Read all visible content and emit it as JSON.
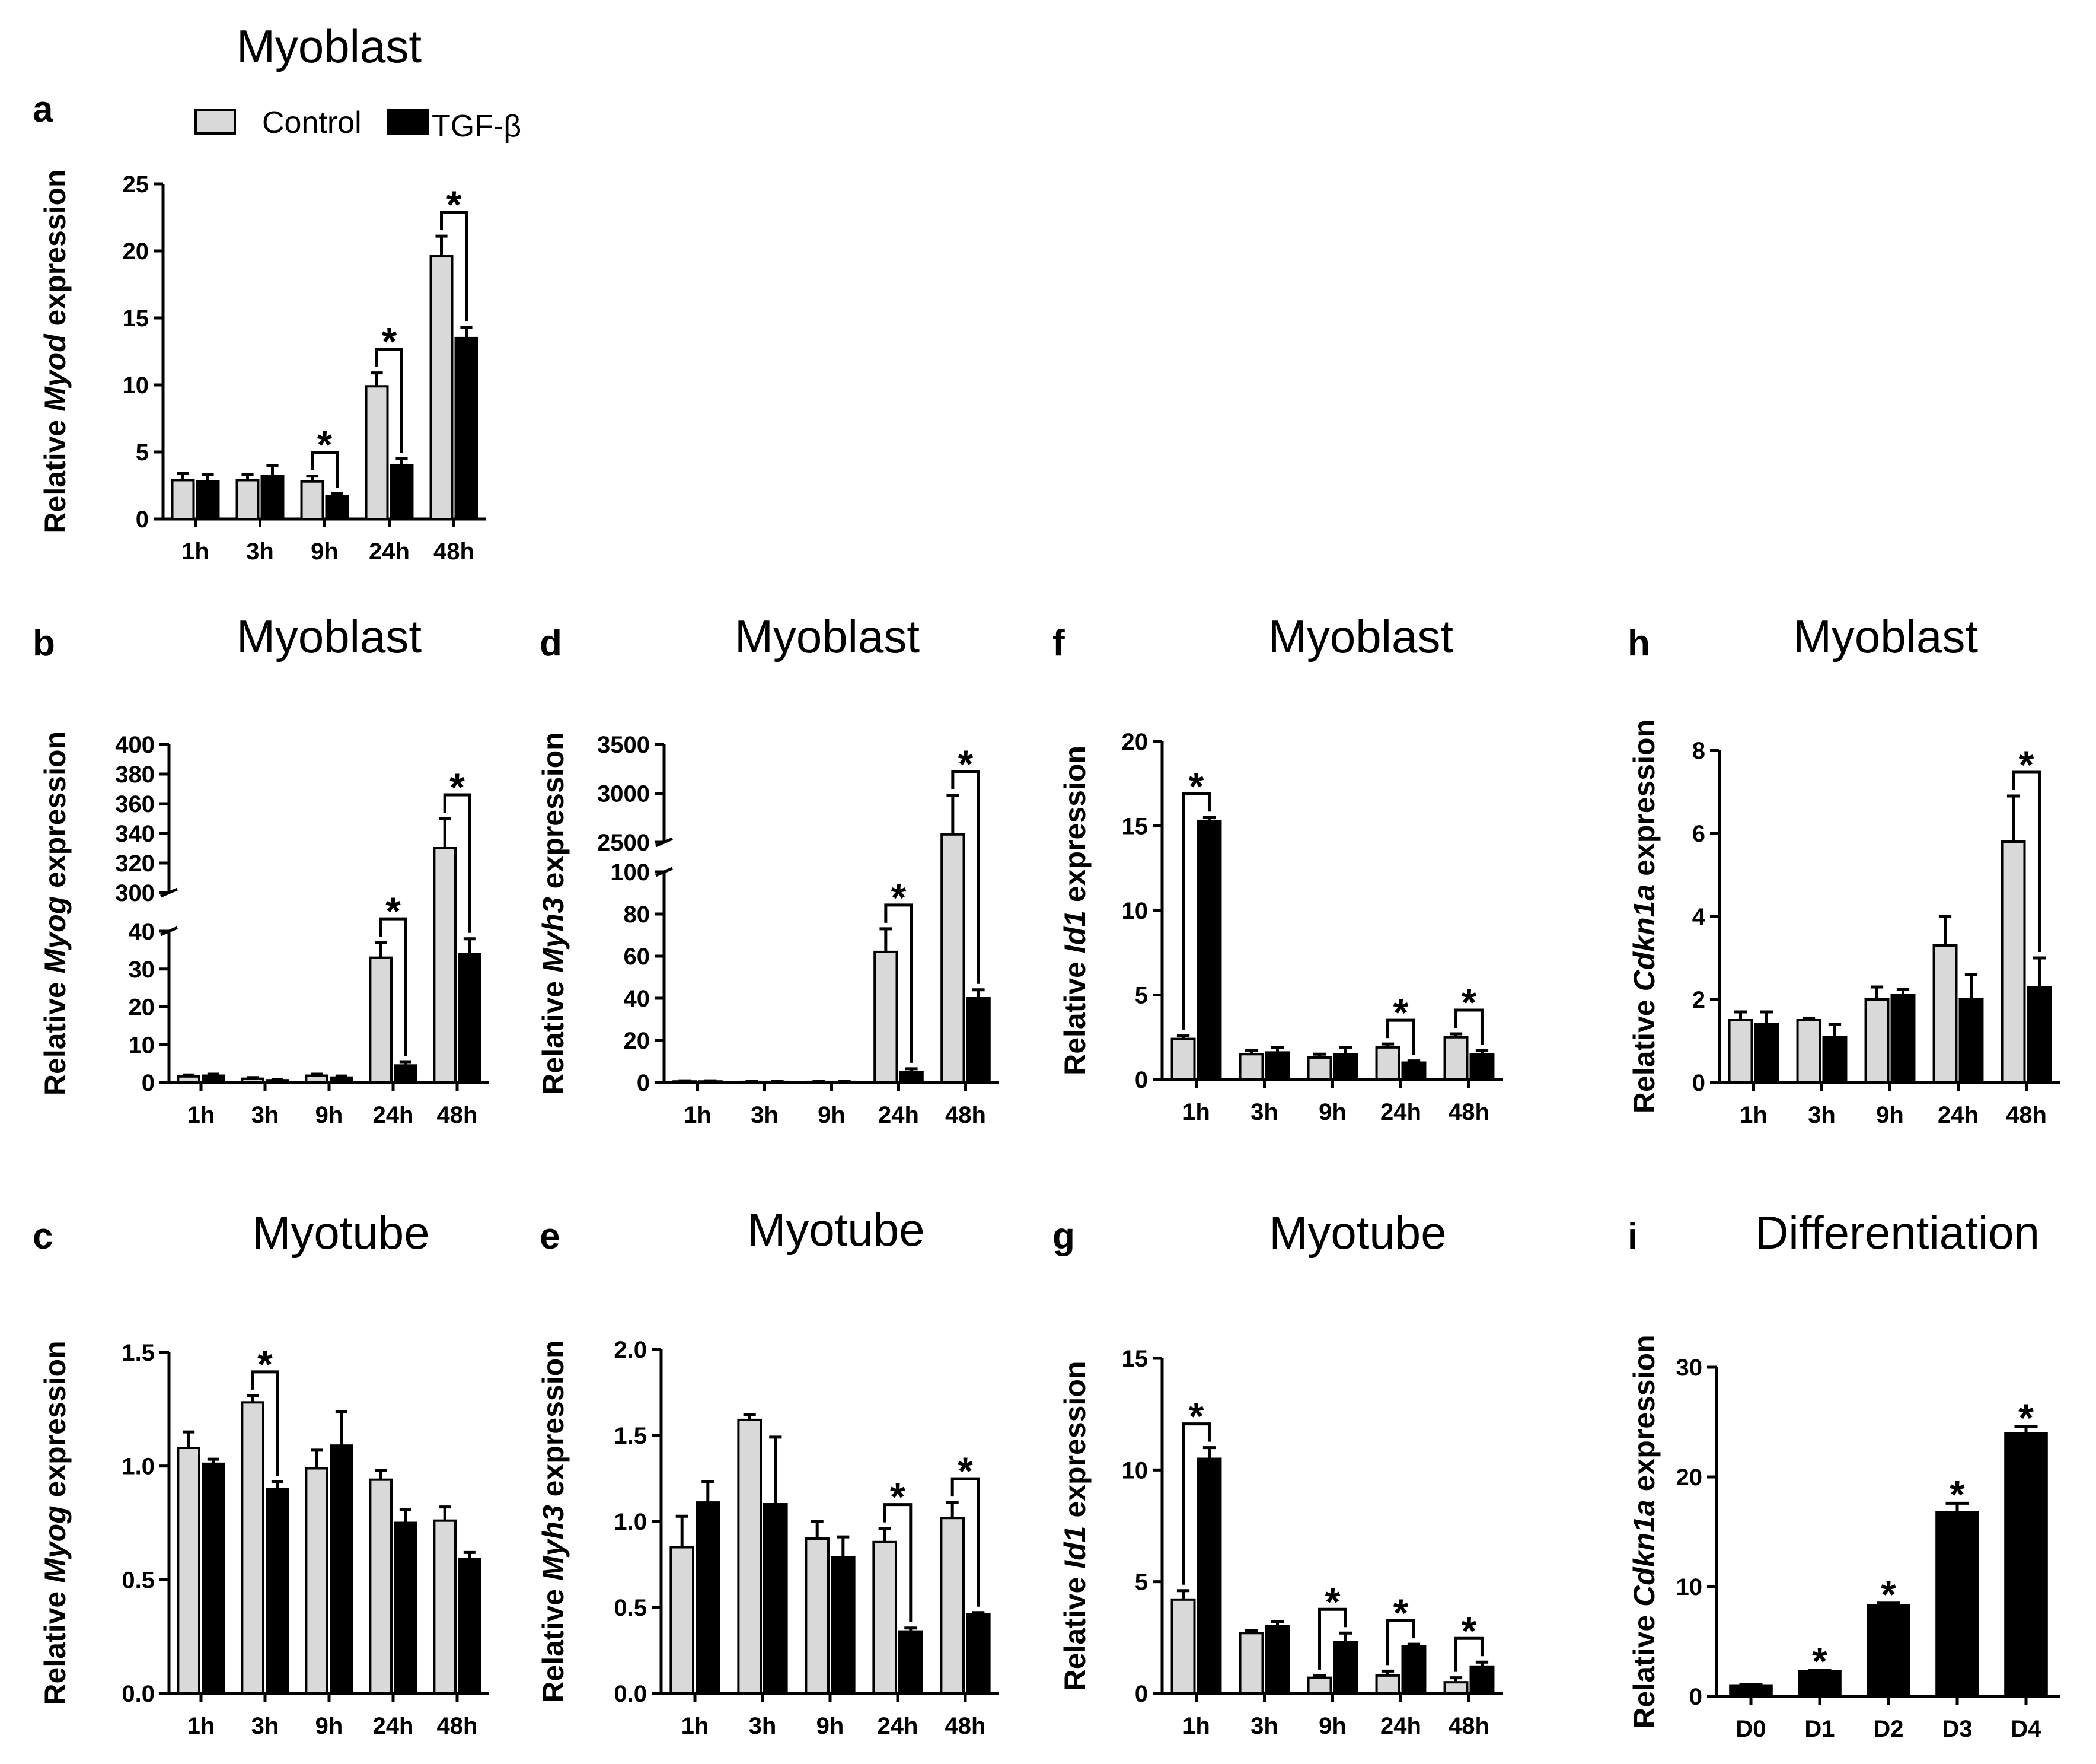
{
  "legend": {
    "items": [
      {
        "label": "Control",
        "color": "#d9d9d9"
      },
      {
        "label": "TGF-β",
        "color": "#000000"
      }
    ]
  },
  "chart_data": [
    {
      "id": "a",
      "letter": "a",
      "type": "bar",
      "title": "Myoblast",
      "ylabel_pre": "Relative ",
      "ylabel_gene": "Myod",
      "ylabel_post": " expression",
      "categories": [
        "1h",
        "3h",
        "9h",
        "24h",
        "48h"
      ],
      "series": [
        {
          "name": "Control",
          "values": [
            2.9,
            2.9,
            2.8,
            9.9,
            19.6
          ],
          "errors": [
            0.5,
            0.4,
            0.4,
            1.0,
            1.5
          ]
        },
        {
          "name": "TGF-β",
          "values": [
            2.8,
            3.2,
            1.7,
            4.0,
            13.5
          ],
          "errors": [
            0.5,
            0.8,
            0.2,
            0.5,
            0.8
          ]
        }
      ],
      "ylim": [
        0,
        25
      ],
      "yticks": [
        0,
        5,
        10,
        15,
        20,
        25
      ],
      "significance": [
        2,
        3,
        4
      ]
    },
    {
      "id": "b",
      "letter": "b",
      "type": "bar",
      "title": "Myoblast",
      "ylabel_pre": "Relative ",
      "ylabel_gene": "Myog",
      "ylabel_post": " expression",
      "categories": [
        "1h",
        "3h",
        "9h",
        "24h",
        "48h"
      ],
      "series": [
        {
          "name": "Control",
          "values": [
            1.6,
            1.0,
            1.8,
            33,
            330
          ],
          "errors": [
            0.4,
            0.3,
            0.4,
            4,
            20
          ]
        },
        {
          "name": "TGF-β",
          "values": [
            1.8,
            0.6,
            1.3,
            4.5,
            34
          ],
          "errors": [
            0.4,
            0.2,
            0.4,
            1.0,
            4
          ]
        }
      ],
      "broken_axis": {
        "lower": [
          0,
          40
        ],
        "upper": [
          300,
          400
        ]
      },
      "yticks": [
        0,
        10,
        20,
        30,
        40,
        300,
        320,
        340,
        360,
        380,
        400
      ],
      "significance": [
        3,
        4
      ]
    },
    {
      "id": "c",
      "letter": "c",
      "type": "bar",
      "title": "Myotube",
      "ylabel_pre": "Relative ",
      "ylabel_gene": "Myog",
      "ylabel_post": " expression",
      "categories": [
        "1h",
        "3h",
        "9h",
        "24h",
        "48h"
      ],
      "series": [
        {
          "name": "Control",
          "values": [
            1.08,
            1.28,
            0.99,
            0.94,
            0.76
          ],
          "errors": [
            0.07,
            0.03,
            0.08,
            0.04,
            0.06
          ]
        },
        {
          "name": "TGF-β",
          "values": [
            1.01,
            0.9,
            1.09,
            0.75,
            0.59
          ],
          "errors": [
            0.02,
            0.03,
            0.15,
            0.06,
            0.03
          ]
        }
      ],
      "ylim": [
        0,
        1.5
      ],
      "yticks": [
        "0.0",
        "0.5",
        "1.0",
        "1.5"
      ],
      "significance": [
        1
      ]
    },
    {
      "id": "d",
      "letter": "d",
      "type": "bar",
      "title": "Myoblast",
      "ylabel_pre": "Relative ",
      "ylabel_gene": "Myh3",
      "ylabel_post": " expression",
      "categories": [
        "1h",
        "3h",
        "9h",
        "24h",
        "48h"
      ],
      "series": [
        {
          "name": "Control",
          "values": [
            0.5,
            0.3,
            0.3,
            62,
            2580
          ],
          "errors": [
            0.3,
            0.2,
            0.2,
            11,
            400
          ]
        },
        {
          "name": "TGF-β",
          "values": [
            0.5,
            0.3,
            0.3,
            5,
            40
          ],
          "errors": [
            0.3,
            0.2,
            0.2,
            1.5,
            4
          ]
        }
      ],
      "broken_axis": {
        "lower": [
          0,
          100
        ],
        "upper": [
          2500,
          3500
        ]
      },
      "yticks": [
        0,
        20,
        40,
        60,
        80,
        100,
        2500,
        3000,
        3500
      ],
      "significance": [
        3,
        4
      ]
    },
    {
      "id": "e",
      "letter": "e",
      "type": "bar",
      "title": "Myotube",
      "ylabel_pre": "Relative ",
      "ylabel_gene": "Myh3",
      "ylabel_post": " expression",
      "categories": [
        "1h",
        "3h",
        "9h",
        "24h",
        "48h"
      ],
      "series": [
        {
          "name": "Control",
          "values": [
            0.85,
            1.59,
            0.9,
            0.88,
            1.02
          ],
          "errors": [
            0.18,
            0.03,
            0.1,
            0.08,
            0.09
          ]
        },
        {
          "name": "TGF-β",
          "values": [
            1.11,
            1.1,
            0.79,
            0.36,
            0.46
          ],
          "errors": [
            0.12,
            0.39,
            0.12,
            0.02,
            0.01
          ]
        }
      ],
      "ylim": [
        0,
        2.0
      ],
      "yticks": [
        "0.0",
        "0.5",
        "1.0",
        "1.5",
        "2.0"
      ],
      "significance": [
        3,
        4
      ]
    },
    {
      "id": "f",
      "letter": "f",
      "type": "bar",
      "title": "Myoblast",
      "ylabel_pre": "Relative ",
      "ylabel_gene": "Id1",
      "ylabel_post": " expression",
      "categories": [
        "1h",
        "3h",
        "9h",
        "24h",
        "48h"
      ],
      "series": [
        {
          "name": "Control",
          "values": [
            2.4,
            1.5,
            1.3,
            1.9,
            2.5
          ],
          "errors": [
            0.2,
            0.2,
            0.2,
            0.2,
            0.2
          ]
        },
        {
          "name": "TGF-β",
          "values": [
            15.3,
            1.6,
            1.5,
            1.0,
            1.5
          ],
          "errors": [
            0.2,
            0.3,
            0.4,
            0.1,
            0.2
          ]
        }
      ],
      "ylim": [
        0,
        20
      ],
      "yticks": [
        0,
        5,
        10,
        15,
        20
      ],
      "significance": [
        0,
        3,
        4
      ]
    },
    {
      "id": "g",
      "letter": "g",
      "type": "bar",
      "title": "Myotube",
      "ylabel_pre": "Relative ",
      "ylabel_gene": "Id1",
      "ylabel_post": " expression",
      "categories": [
        "1h",
        "3h",
        "9h",
        "24h",
        "48h"
      ],
      "series": [
        {
          "name": "Control",
          "values": [
            4.2,
            2.7,
            0.7,
            0.8,
            0.5
          ],
          "errors": [
            0.4,
            0.1,
            0.1,
            0.2,
            0.2
          ]
        },
        {
          "name": "TGF-β",
          "values": [
            10.5,
            3.0,
            2.3,
            2.1,
            1.2
          ],
          "errors": [
            0.5,
            0.2,
            0.4,
            0.1,
            0.2
          ]
        }
      ],
      "ylim": [
        0,
        15
      ],
      "yticks": [
        0,
        5,
        10,
        15
      ],
      "significance": [
        0,
        2,
        3,
        4
      ]
    },
    {
      "id": "h",
      "letter": "h",
      "type": "bar",
      "title": "Myoblast",
      "ylabel_pre": "Relative ",
      "ylabel_gene": "Cdkn1a",
      "ylabel_post": " expression",
      "categories": [
        "1h",
        "3h",
        "9h",
        "24h",
        "48h"
      ],
      "series": [
        {
          "name": "Control",
          "values": [
            1.5,
            1.5,
            2.0,
            3.3,
            5.8
          ],
          "errors": [
            0.2,
            0.05,
            0.3,
            0.7,
            1.1
          ]
        },
        {
          "name": "TGF-β",
          "values": [
            1.4,
            1.1,
            2.1,
            2.0,
            2.3
          ],
          "errors": [
            0.3,
            0.3,
            0.15,
            0.6,
            0.7
          ]
        }
      ],
      "ylim": [
        0,
        8
      ],
      "yticks": [
        0,
        2,
        4,
        6,
        8
      ],
      "significance": [
        4
      ]
    },
    {
      "id": "i",
      "letter": "i",
      "type": "bar",
      "title": "Differentiation",
      "ylabel_pre": "Relative ",
      "ylabel_gene": "Cdkn1a",
      "ylabel_post": " expression",
      "categories": [
        "D0",
        "D1",
        "D2",
        "D3",
        "D4"
      ],
      "series": [
        {
          "name": "TGF-β",
          "values": [
            1.0,
            2.3,
            8.3,
            16.8,
            24.0
          ],
          "errors": [
            0.1,
            0.1,
            0.2,
            0.8,
            0.6
          ]
        }
      ],
      "ylim": [
        0,
        30
      ],
      "yticks": [
        0,
        10,
        20,
        30
      ],
      "significance": [
        1,
        2,
        3,
        4
      ],
      "single_series": true
    }
  ]
}
